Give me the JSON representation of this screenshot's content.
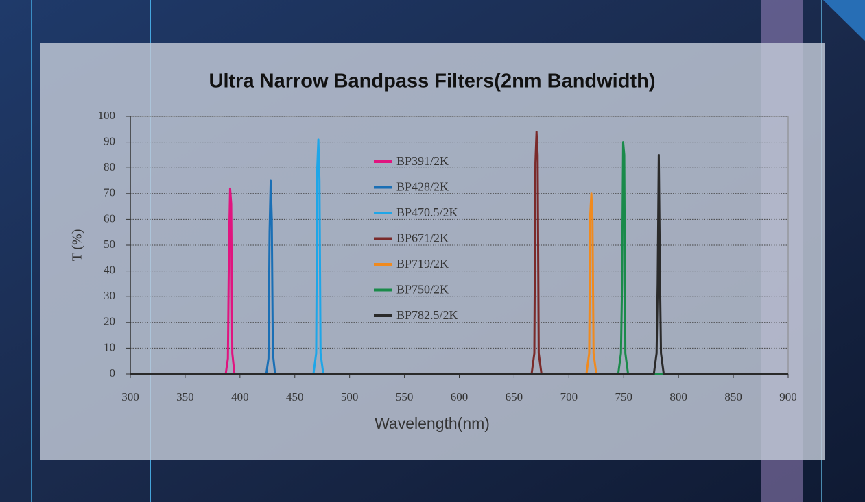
{
  "chart_data": {
    "type": "line",
    "title": "Ultra Narrow Bandpass Filters(2nm Bandwidth)",
    "x_label": "Wavelength(nm)",
    "y_label": "T (%)",
    "xlim": [
      300,
      900
    ],
    "xticks": [
      300,
      350,
      400,
      450,
      500,
      550,
      600,
      650,
      700,
      750,
      800,
      850,
      900
    ],
    "ylim": [
      0,
      100
    ],
    "yticks": [
      0,
      10,
      20,
      30,
      40,
      50,
      60,
      70,
      80,
      90,
      100
    ],
    "grid": true,
    "legend": "upper-center",
    "series": [
      {
        "name": "BP391/2K",
        "color": "#e0147f",
        "x": [
          300,
          387,
          389,
          390,
          391,
          392,
          393,
          395,
          900
        ],
        "values": [
          0,
          0,
          6,
          50,
          72,
          66,
          8,
          0,
          0
        ]
      },
      {
        "name": "BP428/2K",
        "color": "#1a6fb5",
        "x": [
          300,
          424,
          426,
          427,
          428,
          429,
          430,
          432,
          900
        ],
        "values": [
          0,
          0,
          6,
          55,
          75,
          60,
          8,
          0,
          0
        ]
      },
      {
        "name": "BP470.5/2K",
        "color": "#1ea6e8",
        "x": [
          300,
          467,
          469.5,
          470.5,
          471.5,
          472.5,
          473.5,
          476,
          900
        ],
        "values": [
          0,
          0,
          8,
          80,
          91,
          75,
          8,
          0,
          0
        ]
      },
      {
        "name": "BP671/2K",
        "color": "#7a2a2a",
        "x": [
          300,
          666,
          668.5,
          669.5,
          670.5,
          671.5,
          672.5,
          675,
          900
        ],
        "values": [
          0,
          0,
          8,
          82,
          94,
          85,
          8,
          0,
          0
        ]
      },
      {
        "name": "BP719/2K",
        "color": "#f08a1e",
        "x": [
          300,
          716,
          718.5,
          719.5,
          720.5,
          721.5,
          722.5,
          725,
          900
        ],
        "values": [
          0,
          0,
          8,
          62,
          70,
          60,
          8,
          0,
          0
        ]
      },
      {
        "name": "BP750/2K",
        "color": "#1a8a4a",
        "x": [
          300,
          745,
          747.5,
          748.5,
          749.5,
          750.5,
          751.5,
          754,
          900
        ],
        "values": [
          0,
          0,
          8,
          35,
          90,
          85,
          8,
          0,
          0
        ]
      },
      {
        "name": "BP782.5/2K",
        "color": "#2a2a2a",
        "x": [
          300,
          777.5,
          780,
          781,
          782,
          783,
          784,
          786.5,
          900
        ],
        "values": [
          0,
          0,
          8,
          35,
          85,
          40,
          8,
          0,
          0
        ]
      }
    ]
  }
}
